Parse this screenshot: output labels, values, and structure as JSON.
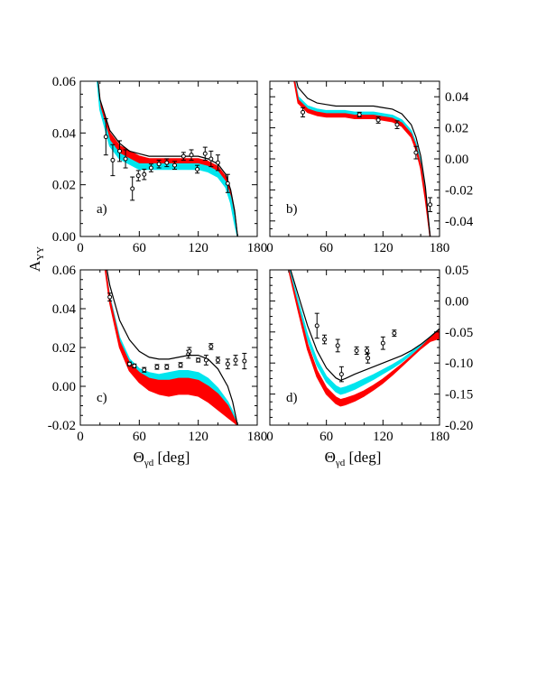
{
  "figure": {
    "ylabel_main": "A",
    "ylabel_sub": "YY",
    "xlabel_main": "Θ",
    "xlabel_sub": "γd",
    "xlabel_unit": " [deg]",
    "colors": {
      "band_red": "#ff0000",
      "band_cyan": "#00e5ee",
      "curve": "#000000"
    }
  },
  "chart_data": [
    {
      "type": "line",
      "panel_label": "a)",
      "xlim": [
        0,
        180
      ],
      "ylim": [
        0.0,
        0.06
      ],
      "xticks": [
        0,
        60,
        120,
        180
      ],
      "xtick_labels": [
        "0",
        "60",
        "120",
        "180"
      ],
      "yticks": [
        0.0,
        0.02,
        0.04,
        0.06
      ],
      "ytick_labels": [
        "0.00",
        "0.02",
        "0.04",
        "0.06"
      ],
      "yaxis_side": "left",
      "show_xtick_labels": true,
      "x": [
        10,
        20,
        30,
        40,
        50,
        60,
        70,
        80,
        90,
        100,
        110,
        120,
        130,
        140,
        148,
        153,
        157,
        160
      ],
      "series": [
        {
          "style": "line",
          "values": [
            0.09,
            0.053,
            0.041,
            0.036,
            0.033,
            0.032,
            0.031,
            0.031,
            0.031,
            0.031,
            0.031,
            0.031,
            0.03,
            0.028,
            0.024,
            0.018,
            0.01,
            0.0
          ]
        },
        {
          "style": "band_red",
          "upper": [
            0.09,
            0.052,
            0.04,
            0.035,
            0.033,
            0.031,
            0.03,
            0.03,
            0.03,
            0.03,
            0.03,
            0.03,
            0.029,
            0.027,
            0.023,
            0.017,
            0.009,
            0.0
          ],
          "lower": [
            0.09,
            0.05,
            0.037,
            0.032,
            0.03,
            0.028,
            0.028,
            0.028,
            0.028,
            0.028,
            0.028,
            0.028,
            0.027,
            0.025,
            0.021,
            0.015,
            0.007,
            0.0
          ]
        },
        {
          "style": "band_cyan",
          "upper": [
            0.09,
            0.05,
            0.037,
            0.032,
            0.03,
            0.028,
            0.028,
            0.028,
            0.028,
            0.028,
            0.028,
            0.028,
            0.027,
            0.025,
            0.021,
            0.015,
            0.007,
            0.0
          ],
          "lower": [
            0.09,
            0.049,
            0.035,
            0.03,
            0.028,
            0.026,
            0.026,
            0.026,
            0.026,
            0.026,
            0.026,
            0.026,
            0.025,
            0.023,
            0.019,
            0.013,
            0.005,
            0.0
          ]
        }
      ],
      "points": [
        {
          "x": 26,
          "y": 0.0385,
          "err": 0.007
        },
        {
          "x": 33,
          "y": 0.0295,
          "err": 0.006
        },
        {
          "x": 40,
          "y": 0.033,
          "err": 0.004
        },
        {
          "x": 46,
          "y": 0.03,
          "err": 0.0035
        },
        {
          "x": 53,
          "y": 0.0185,
          "err": 0.0045
        },
        {
          "x": 59,
          "y": 0.0235,
          "err": 0.002
        },
        {
          "x": 65,
          "y": 0.024,
          "err": 0.002
        },
        {
          "x": 72,
          "y": 0.0265,
          "err": 0.0015
        },
        {
          "x": 80,
          "y": 0.028,
          "err": 0.0015
        },
        {
          "x": 88,
          "y": 0.0285,
          "err": 0.0015
        },
        {
          "x": 96,
          "y": 0.0275,
          "err": 0.0015
        },
        {
          "x": 105,
          "y": 0.031,
          "err": 0.0015
        },
        {
          "x": 113,
          "y": 0.0315,
          "err": 0.002
        },
        {
          "x": 119,
          "y": 0.026,
          "err": 0.0015
        },
        {
          "x": 127,
          "y": 0.032,
          "err": 0.0025
        },
        {
          "x": 133,
          "y": 0.03,
          "err": 0.003
        },
        {
          "x": 140,
          "y": 0.0285,
          "err": 0.003
        },
        {
          "x": 150,
          "y": 0.0205,
          "err": 0.0035
        }
      ]
    },
    {
      "type": "line",
      "panel_label": "b)",
      "xlim": [
        0,
        180
      ],
      "ylim": [
        -0.05,
        0.05
      ],
      "xticks": [
        0,
        60,
        120,
        180
      ],
      "xtick_labels": [
        "0",
        "60",
        "120",
        "180"
      ],
      "yticks": [
        -0.04,
        -0.02,
        0.0,
        0.02,
        0.04
      ],
      "ytick_labels": [
        "-0.04",
        "-0.02",
        "0.00",
        "0.02",
        "0.04"
      ],
      "yaxis_side": "right",
      "show_xtick_labels": true,
      "x": [
        20,
        30,
        40,
        50,
        60,
        70,
        80,
        90,
        100,
        110,
        120,
        130,
        140,
        150,
        155,
        160,
        165,
        170
      ],
      "series": [
        {
          "style": "line",
          "values": [
            0.07,
            0.046,
            0.039,
            0.036,
            0.035,
            0.034,
            0.034,
            0.034,
            0.034,
            0.034,
            0.033,
            0.032,
            0.029,
            0.022,
            0.014,
            0.002,
            -0.018,
            -0.05
          ]
        },
        {
          "style": "band_cyan",
          "upper": [
            0.07,
            0.04,
            0.034,
            0.032,
            0.031,
            0.031,
            0.031,
            0.03,
            0.03,
            0.03,
            0.029,
            0.028,
            0.025,
            0.018,
            0.01,
            -0.002,
            -0.022,
            -0.05
          ],
          "lower": [
            0.07,
            0.038,
            0.032,
            0.03,
            0.029,
            0.029,
            0.029,
            0.028,
            0.028,
            0.028,
            0.027,
            0.026,
            0.023,
            0.016,
            0.008,
            -0.004,
            -0.024,
            -0.05
          ]
        },
        {
          "style": "band_red",
          "upper": [
            0.07,
            0.038,
            0.032,
            0.03,
            0.029,
            0.029,
            0.029,
            0.028,
            0.028,
            0.028,
            0.027,
            0.026,
            0.023,
            0.016,
            0.008,
            -0.004,
            -0.024,
            -0.05
          ],
          "lower": [
            0.07,
            0.036,
            0.03,
            0.028,
            0.027,
            0.027,
            0.027,
            0.026,
            0.026,
            0.026,
            0.025,
            0.024,
            0.021,
            0.014,
            0.006,
            -0.006,
            -0.026,
            -0.05
          ]
        }
      ],
      "points": [
        {
          "x": 35,
          "y": 0.03,
          "err": 0.003
        },
        {
          "x": 95,
          "y": 0.0285,
          "err": 0.0015
        },
        {
          "x": 115,
          "y": 0.025,
          "err": 0.002
        },
        {
          "x": 135,
          "y": 0.022,
          "err": 0.0025
        },
        {
          "x": 155,
          "y": 0.004,
          "err": 0.004
        },
        {
          "x": 170,
          "y": -0.0295,
          "err": 0.0045
        }
      ]
    },
    {
      "type": "line",
      "panel_label": "c)",
      "xlim": [
        0,
        180
      ],
      "ylim": [
        -0.02,
        0.06
      ],
      "xticks": [
        0,
        60,
        120,
        180
      ],
      "xtick_labels": [
        "0",
        "60",
        "120",
        "180"
      ],
      "yticks": [
        -0.02,
        0.0,
        0.02,
        0.04,
        0.06
      ],
      "ytick_labels": [
        "-0.02",
        "0.00",
        "0.02",
        "0.04",
        "0.06"
      ],
      "yaxis_side": "left",
      "show_xtick_labels": true,
      "x": [
        20,
        30,
        40,
        50,
        60,
        70,
        80,
        90,
        100,
        110,
        120,
        130,
        140,
        150,
        155,
        160
      ],
      "series": [
        {
          "style": "line",
          "values": [
            0.08,
            0.052,
            0.034,
            0.024,
            0.018,
            0.015,
            0.014,
            0.014,
            0.015,
            0.016,
            0.016,
            0.014,
            0.009,
            0.0,
            -0.008,
            -0.02
          ]
        },
        {
          "style": "band_cyan",
          "upper": [
            0.08,
            0.046,
            0.025,
            0.014,
            0.009,
            0.007,
            0.006,
            0.007,
            0.008,
            0.008,
            0.007,
            0.004,
            -0.001,
            -0.008,
            -0.013,
            -0.02
          ],
          "lower": [
            0.08,
            0.045,
            0.023,
            0.012,
            0.007,
            0.004,
            0.003,
            0.003,
            0.004,
            0.004,
            0.003,
            0.0,
            -0.004,
            -0.01,
            -0.015,
            -0.02
          ]
        },
        {
          "style": "band_red",
          "upper": [
            0.08,
            0.045,
            0.023,
            0.012,
            0.007,
            0.004,
            0.003,
            0.003,
            0.004,
            0.004,
            0.003,
            0.0,
            -0.004,
            -0.01,
            -0.015,
            -0.02
          ],
          "lower": [
            0.08,
            0.043,
            0.02,
            0.008,
            0.002,
            -0.002,
            -0.004,
            -0.005,
            -0.004,
            -0.004,
            -0.005,
            -0.008,
            -0.012,
            -0.016,
            -0.018,
            -0.02
          ]
        }
      ],
      "points": [
        {
          "x": 30,
          "y": 0.046,
          "err": 0.002
        },
        {
          "x": 50,
          "y": 0.0115,
          "err": 0.001
        },
        {
          "x": 55,
          "y": 0.0105,
          "err": 0.001
        },
        {
          "x": 65,
          "y": 0.0085,
          "err": 0.0012
        },
        {
          "x": 78,
          "y": 0.01,
          "err": 0.0012
        },
        {
          "x": 88,
          "y": 0.01,
          "err": 0.0012
        },
        {
          "x": 102,
          "y": 0.011,
          "err": 0.0012
        },
        {
          "x": 110,
          "y": 0.0165,
          "err": 0.002
        },
        {
          "x": 111,
          "y": 0.018,
          "err": 0.002
        },
        {
          "x": 120,
          "y": 0.0135,
          "err": 0.001
        },
        {
          "x": 128,
          "y": 0.0135,
          "err": 0.0025
        },
        {
          "x": 133,
          "y": 0.0205,
          "err": 0.0015
        },
        {
          "x": 140,
          "y": 0.0135,
          "err": 0.0015
        },
        {
          "x": 150,
          "y": 0.0115,
          "err": 0.0025
        },
        {
          "x": 158,
          "y": 0.0135,
          "err": 0.0025
        },
        {
          "x": 167,
          "y": 0.013,
          "err": 0.004
        }
      ]
    },
    {
      "type": "line",
      "panel_label": "d)",
      "xlim": [
        0,
        180
      ],
      "ylim": [
        -0.2,
        0.05
      ],
      "xticks": [
        0,
        60,
        120,
        180
      ],
      "xtick_labels": [
        "0",
        "60",
        "120",
        "180"
      ],
      "yticks": [
        -0.2,
        -0.15,
        -0.1,
        -0.05,
        0.0,
        0.05
      ],
      "ytick_labels": [
        "-0.20",
        "-0.15",
        "-0.10",
        "-0.05",
        "0.00",
        "0.05"
      ],
      "yaxis_side": "right",
      "show_xtick_labels": true,
      "x": [
        20,
        30,
        40,
        50,
        60,
        70,
        75,
        80,
        90,
        100,
        110,
        120,
        130,
        140,
        150,
        160,
        170,
        180
      ],
      "series": [
        {
          "style": "line",
          "values": [
            0.06,
            0.01,
            -0.04,
            -0.08,
            -0.108,
            -0.124,
            -0.128,
            -0.125,
            -0.118,
            -0.112,
            -0.106,
            -0.1,
            -0.094,
            -0.088,
            -0.08,
            -0.07,
            -0.058,
            -0.045
          ]
        },
        {
          "style": "band_cyan",
          "upper": [
            0.055,
            0.0,
            -0.055,
            -0.095,
            -0.122,
            -0.137,
            -0.141,
            -0.139,
            -0.133,
            -0.126,
            -0.119,
            -0.111,
            -0.103,
            -0.094,
            -0.083,
            -0.071,
            -0.058,
            -0.045
          ],
          "lower": [
            0.055,
            -0.005,
            -0.062,
            -0.103,
            -0.13,
            -0.146,
            -0.15,
            -0.148,
            -0.142,
            -0.134,
            -0.126,
            -0.117,
            -0.108,
            -0.098,
            -0.086,
            -0.073,
            -0.06,
            -0.047
          ]
        },
        {
          "style": "band_red",
          "upper": [
            0.05,
            -0.01,
            -0.07,
            -0.112,
            -0.14,
            -0.155,
            -0.159,
            -0.157,
            -0.152,
            -0.145,
            -0.136,
            -0.126,
            -0.114,
            -0.102,
            -0.089,
            -0.075,
            -0.06,
            -0.045
          ],
          "lower": [
            0.05,
            -0.015,
            -0.078,
            -0.122,
            -0.15,
            -0.165,
            -0.169,
            -0.167,
            -0.161,
            -0.153,
            -0.143,
            -0.132,
            -0.119,
            -0.105,
            -0.091,
            -0.077,
            -0.065,
            -0.06
          ]
        }
      ],
      "points": [
        {
          "x": 50,
          "y": -0.04,
          "err": 0.02
        },
        {
          "x": 58,
          "y": -0.062,
          "err": 0.007
        },
        {
          "x": 72,
          "y": -0.072,
          "err": 0.01
        },
        {
          "x": 76,
          "y": -0.118,
          "err": 0.012
        },
        {
          "x": 92,
          "y": -0.08,
          "err": 0.006
        },
        {
          "x": 103,
          "y": -0.08,
          "err": 0.006
        },
        {
          "x": 104,
          "y": -0.092,
          "err": 0.008
        },
        {
          "x": 120,
          "y": -0.068,
          "err": 0.01
        },
        {
          "x": 132,
          "y": -0.052,
          "err": 0.005
        }
      ]
    }
  ]
}
